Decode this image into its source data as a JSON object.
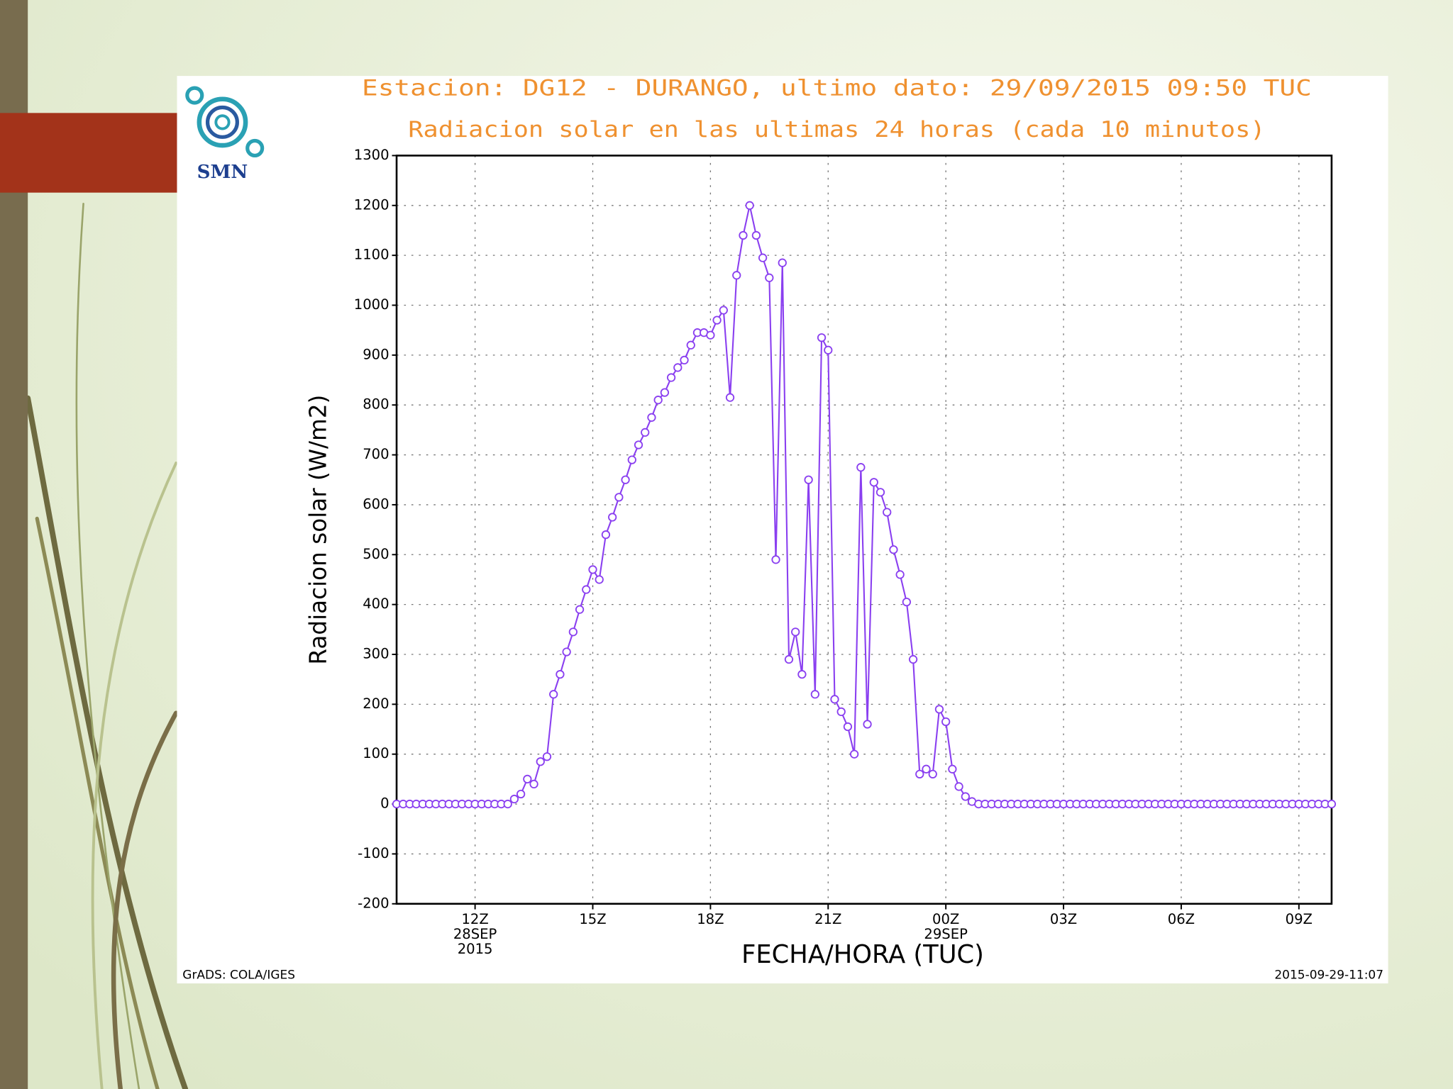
{
  "logo": {
    "text": "SMN"
  },
  "chart_data": {
    "type": "line",
    "title": "Estacion: DG12 - DURANGO, ultimo dato: 29/09/2015 09:50 TUC",
    "subtitle": "Radiacion solar en las ultimas 24 horas (cada 10 minutos)",
    "x_label": "FECHA/HORA (TUC)",
    "y_label": "Radiacion solar (W/m2)",
    "color": "#8a3ff0",
    "grid": true,
    "x": [
      600,
      610,
      620,
      630,
      640,
      650,
      660,
      670,
      680,
      690,
      700,
      710,
      720,
      730,
      740,
      750,
      760,
      770,
      780,
      790,
      800,
      810,
      820,
      830,
      840,
      850,
      860,
      870,
      880,
      890,
      900,
      910,
      920,
      930,
      940,
      950,
      960,
      970,
      980,
      990,
      1000,
      1010,
      1020,
      1030,
      1040,
      1050,
      1060,
      1070,
      1080,
      1090,
      1100,
      1110,
      1120,
      1130,
      1140,
      1150,
      1160,
      1170,
      1180,
      1190,
      1200,
      1210,
      1220,
      1230,
      1240,
      1250,
      1260,
      1270,
      1280,
      1290,
      1300,
      1310,
      1320,
      1330,
      1340,
      1350,
      1360,
      1370,
      1380,
      1390,
      1400,
      1410,
      1420,
      1430,
      1440,
      1450,
      1460,
      1470,
      1480,
      1490,
      1500,
      1510,
      1520,
      1530,
      1540,
      1550,
      1560,
      1570,
      1580,
      1590,
      1600,
      1610,
      1620,
      1630,
      1640,
      1650,
      1660,
      1670,
      1680,
      1690,
      1700,
      1710,
      1720,
      1730,
      1740,
      1750,
      1760,
      1770,
      1780,
      1790,
      1800,
      1810,
      1820,
      1830,
      1840,
      1850,
      1860,
      1870,
      1880,
      1890,
      1900,
      1910,
      1920,
      1930,
      1940,
      1950,
      1960,
      1970,
      1980,
      1990,
      2000,
      2010,
      2020,
      2030
    ],
    "values": [
      0,
      0,
      0,
      0,
      0,
      0,
      0,
      0,
      0,
      0,
      0,
      0,
      0,
      0,
      0,
      0,
      0,
      0,
      10,
      20,
      50,
      40,
      85,
      95,
      220,
      260,
      305,
      345,
      390,
      430,
      470,
      450,
      540,
      575,
      615,
      650,
      690,
      720,
      745,
      775,
      810,
      825,
      855,
      875,
      890,
      920,
      945,
      945,
      940,
      970,
      990,
      815,
      1060,
      1140,
      1200,
      1140,
      1095,
      1055,
      490,
      1085,
      290,
      345,
      260,
      650,
      220,
      935,
      910,
      210,
      185,
      155,
      100,
      675,
      160,
      645,
      625,
      585,
      510,
      460,
      405,
      290,
      60,
      70,
      60,
      190,
      165,
      70,
      35,
      15,
      5,
      0,
      0,
      0,
      0,
      0,
      0,
      0,
      0,
      0,
      0,
      0,
      0,
      0,
      0,
      0,
      0,
      0,
      0,
      0,
      0,
      0,
      0,
      0,
      0,
      0,
      0,
      0,
      0,
      0,
      0,
      0,
      0,
      0,
      0,
      0,
      0,
      0,
      0,
      0,
      0,
      0,
      0,
      0,
      0,
      0,
      0,
      0,
      0,
      0,
      0,
      0,
      0,
      0,
      0,
      0
    ],
    "xlim": [
      600,
      2030
    ],
    "xticks": [
      {
        "value": 720,
        "label": "12Z\n28SEP\n2015"
      },
      {
        "value": 900,
        "label": "15Z"
      },
      {
        "value": 1080,
        "label": "18Z"
      },
      {
        "value": 1260,
        "label": "21Z"
      },
      {
        "value": 1440,
        "label": "00Z\n29SEP"
      },
      {
        "value": 1620,
        "label": "03Z"
      },
      {
        "value": 1800,
        "label": "06Z"
      },
      {
        "value": 1980,
        "label": "09Z"
      }
    ],
    "ylim": [
      -200,
      1300
    ],
    "yticks": [
      -200,
      -100,
      0,
      100,
      200,
      300,
      400,
      500,
      600,
      700,
      800,
      900,
      1000,
      1100,
      1200,
      1300
    ]
  },
  "footer": {
    "left": "GrADS: COLA/IGES",
    "right": "2015-09-29-11:07"
  }
}
